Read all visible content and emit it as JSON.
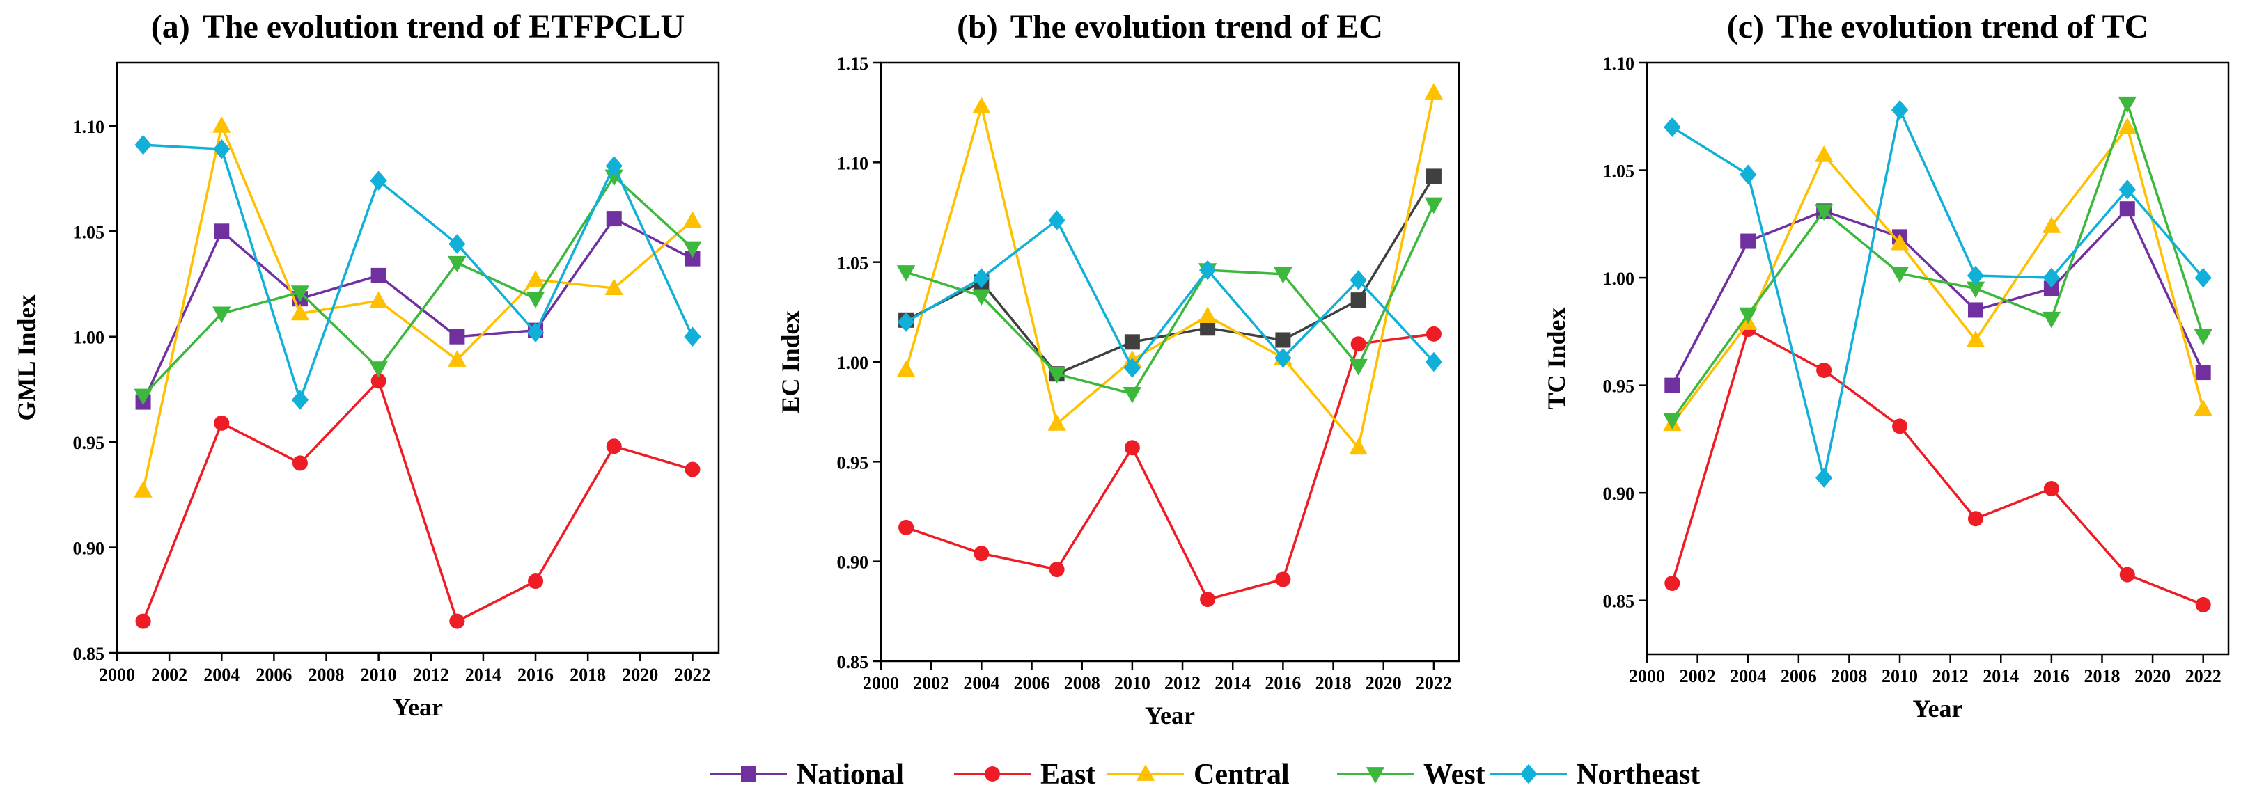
{
  "legend": {
    "items": [
      {
        "name": "National",
        "color": "#7030a0",
        "marker": "square"
      },
      {
        "name": "East",
        "color": "#ee1c25",
        "marker": "circle"
      },
      {
        "name": "Central",
        "color": "#ffc000",
        "marker": "triangle-up"
      },
      {
        "name": "West",
        "color": "#3cb83c",
        "marker": "triangle-down"
      },
      {
        "name": "Northeast",
        "color": "#10b0d8",
        "marker": "diamond"
      }
    ]
  },
  "chart_data": [
    {
      "type": "line",
      "title_prefix": "(a)",
      "title": "The evolution trend of ETFPCLU",
      "xlabel": "Year",
      "ylabel": "GML Index",
      "xlim": [
        2000,
        2023
      ],
      "ylim": [
        0.85,
        1.13
      ],
      "xticks": [
        "2000",
        "2002",
        "2004",
        "2006",
        "2008",
        "2010",
        "2012",
        "2014",
        "2016",
        "2018",
        "2020",
        "2022"
      ],
      "yticks": [
        "0.85",
        "0.90",
        "0.95",
        "1.00",
        "1.05",
        "1.10"
      ],
      "x": [
        2001,
        2004,
        2007,
        2010,
        2013,
        2016,
        2019,
        2022
      ],
      "series": [
        {
          "name": "National",
          "color": "#7030a0",
          "marker": "square",
          "values": [
            0.969,
            1.05,
            1.018,
            1.029,
            1.0,
            1.003,
            1.056,
            1.037
          ]
        },
        {
          "name": "East",
          "color": "#ee1c25",
          "marker": "circle",
          "values": [
            0.865,
            0.959,
            0.94,
            0.979,
            0.865,
            0.884,
            0.948,
            0.937
          ]
        },
        {
          "name": "Central",
          "color": "#ffc000",
          "marker": "triangle-up",
          "values": [
            0.927,
            1.1,
            1.011,
            1.017,
            0.989,
            1.027,
            1.023,
            1.055
          ]
        },
        {
          "name": "West",
          "color": "#3cb83c",
          "marker": "triangle-down",
          "values": [
            0.972,
            1.011,
            1.021,
            0.985,
            1.035,
            1.018,
            1.076,
            1.042
          ]
        },
        {
          "name": "Northeast",
          "color": "#10b0d8",
          "marker": "diamond",
          "values": [
            1.091,
            1.089,
            0.97,
            1.074,
            1.044,
            1.002,
            1.081,
            1.0
          ]
        }
      ]
    },
    {
      "type": "line",
      "title_prefix": "(b)",
      "title": "The evolution trend of EC",
      "xlabel": "Year",
      "ylabel": "EC Index",
      "xlim": [
        2000,
        2023
      ],
      "ylim": [
        0.85,
        1.15
      ],
      "xticks": [
        "2000",
        "2002",
        "2004",
        "2006",
        "2008",
        "2010",
        "2012",
        "2014",
        "2016",
        "2018",
        "2020",
        "2022"
      ],
      "yticks": [
        "0.85",
        "0.90",
        "0.95",
        "1.00",
        "1.05",
        "1.10",
        "1.15"
      ],
      "x": [
        2001,
        2004,
        2007,
        2010,
        2013,
        2016,
        2019,
        2022
      ],
      "series": [
        {
          "name": "National",
          "color": "#404040",
          "marker": "square",
          "values": [
            1.021,
            1.04,
            0.994,
            1.01,
            1.017,
            1.011,
            1.031,
            1.093
          ]
        },
        {
          "name": "East",
          "color": "#ee1c25",
          "marker": "circle",
          "values": [
            0.917,
            0.904,
            0.896,
            0.957,
            0.881,
            0.891,
            1.009,
            1.014
          ]
        },
        {
          "name": "Central",
          "color": "#ffc000",
          "marker": "triangle-up",
          "values": [
            0.996,
            1.128,
            0.969,
            1.001,
            1.023,
            1.002,
            0.957,
            1.135
          ]
        },
        {
          "name": "West",
          "color": "#3cb83c",
          "marker": "triangle-down",
          "values": [
            1.045,
            1.033,
            0.994,
            0.984,
            1.046,
            1.044,
            0.998,
            1.079
          ]
        },
        {
          "name": "Northeast",
          "color": "#10b0d8",
          "marker": "diamond",
          "values": [
            1.02,
            1.042,
            1.071,
            0.997,
            1.046,
            1.002,
            1.041,
            1.0
          ]
        }
      ]
    },
    {
      "type": "line",
      "title_prefix": "(c)",
      "title": "The evolution trend of TC",
      "xlabel": "Year",
      "ylabel": "TC Index",
      "xlim": [
        2000,
        2023
      ],
      "ylim": [
        0.825,
        1.1
      ],
      "xticks": [
        "2000",
        "2002",
        "2004",
        "2006",
        "2008",
        "2010",
        "2012",
        "2014",
        "2016",
        "2018",
        "2020",
        "2022"
      ],
      "yticks": [
        "0.85",
        "0.90",
        "0.95",
        "1.00",
        "1.05",
        "1.10"
      ],
      "x": [
        2001,
        2004,
        2007,
        2010,
        2013,
        2016,
        2019,
        2022
      ],
      "series": [
        {
          "name": "National",
          "color": "#7030a0",
          "marker": "square",
          "values": [
            0.95,
            1.017,
            1.031,
            1.019,
            0.985,
            0.995,
            1.032,
            0.956
          ]
        },
        {
          "name": "East",
          "color": "#ee1c25",
          "marker": "circle",
          "values": [
            0.858,
            0.976,
            0.957,
            0.931,
            0.888,
            0.902,
            0.862,
            0.848
          ]
        },
        {
          "name": "Central",
          "color": "#ffc000",
          "marker": "triangle-up",
          "values": [
            0.932,
            0.979,
            1.057,
            1.016,
            0.971,
            1.024,
            1.07,
            0.939
          ]
        },
        {
          "name": "West",
          "color": "#3cb83c",
          "marker": "triangle-down",
          "values": [
            0.934,
            0.983,
            1.031,
            1.002,
            0.995,
            0.981,
            1.081,
            0.973
          ]
        },
        {
          "name": "Northeast",
          "color": "#10b0d8",
          "marker": "diamond",
          "values": [
            1.07,
            1.048,
            0.907,
            1.078,
            1.001,
            1.0,
            1.041,
            1.0
          ]
        }
      ]
    }
  ]
}
